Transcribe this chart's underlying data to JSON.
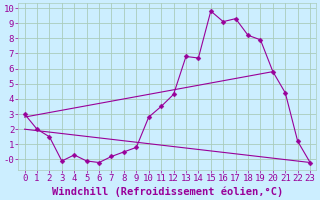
{
  "xlabel": "Windchill (Refroidissement éolien,°C)",
  "bg_color": "#cceeff",
  "line_color": "#990099",
  "xlim": [
    -0.5,
    23.5
  ],
  "ylim": [
    -0.7,
    10.3
  ],
  "xticks": [
    0,
    1,
    2,
    3,
    4,
    5,
    6,
    7,
    8,
    9,
    10,
    11,
    12,
    13,
    14,
    15,
    16,
    17,
    18,
    19,
    20,
    21,
    22,
    23
  ],
  "yticks": [
    0,
    1,
    2,
    3,
    4,
    5,
    6,
    7,
    8,
    9,
    10
  ],
  "series1_x": [
    0,
    1,
    2,
    3,
    4,
    5,
    6,
    7,
    8,
    9,
    10,
    11,
    12,
    13,
    14,
    15,
    16,
    17,
    18,
    19,
    20,
    21,
    22,
    23
  ],
  "series1_y": [
    3.0,
    2.0,
    1.5,
    -0.1,
    0.3,
    -0.1,
    -0.2,
    0.2,
    0.5,
    0.8,
    2.8,
    3.5,
    4.3,
    6.8,
    6.7,
    9.8,
    9.1,
    9.3,
    8.2,
    7.9,
    5.8,
    4.4,
    1.2,
    -0.2
  ],
  "line2_x": [
    0,
    20
  ],
  "line2_y": [
    2.8,
    5.8
  ],
  "line3_x": [
    0,
    23
  ],
  "line3_y": [
    2.0,
    -0.2
  ],
  "grid_color": "#aaccbb",
  "font_color": "#990099",
  "tick_fontsize": 6.5,
  "xlabel_fontsize": 7.5
}
